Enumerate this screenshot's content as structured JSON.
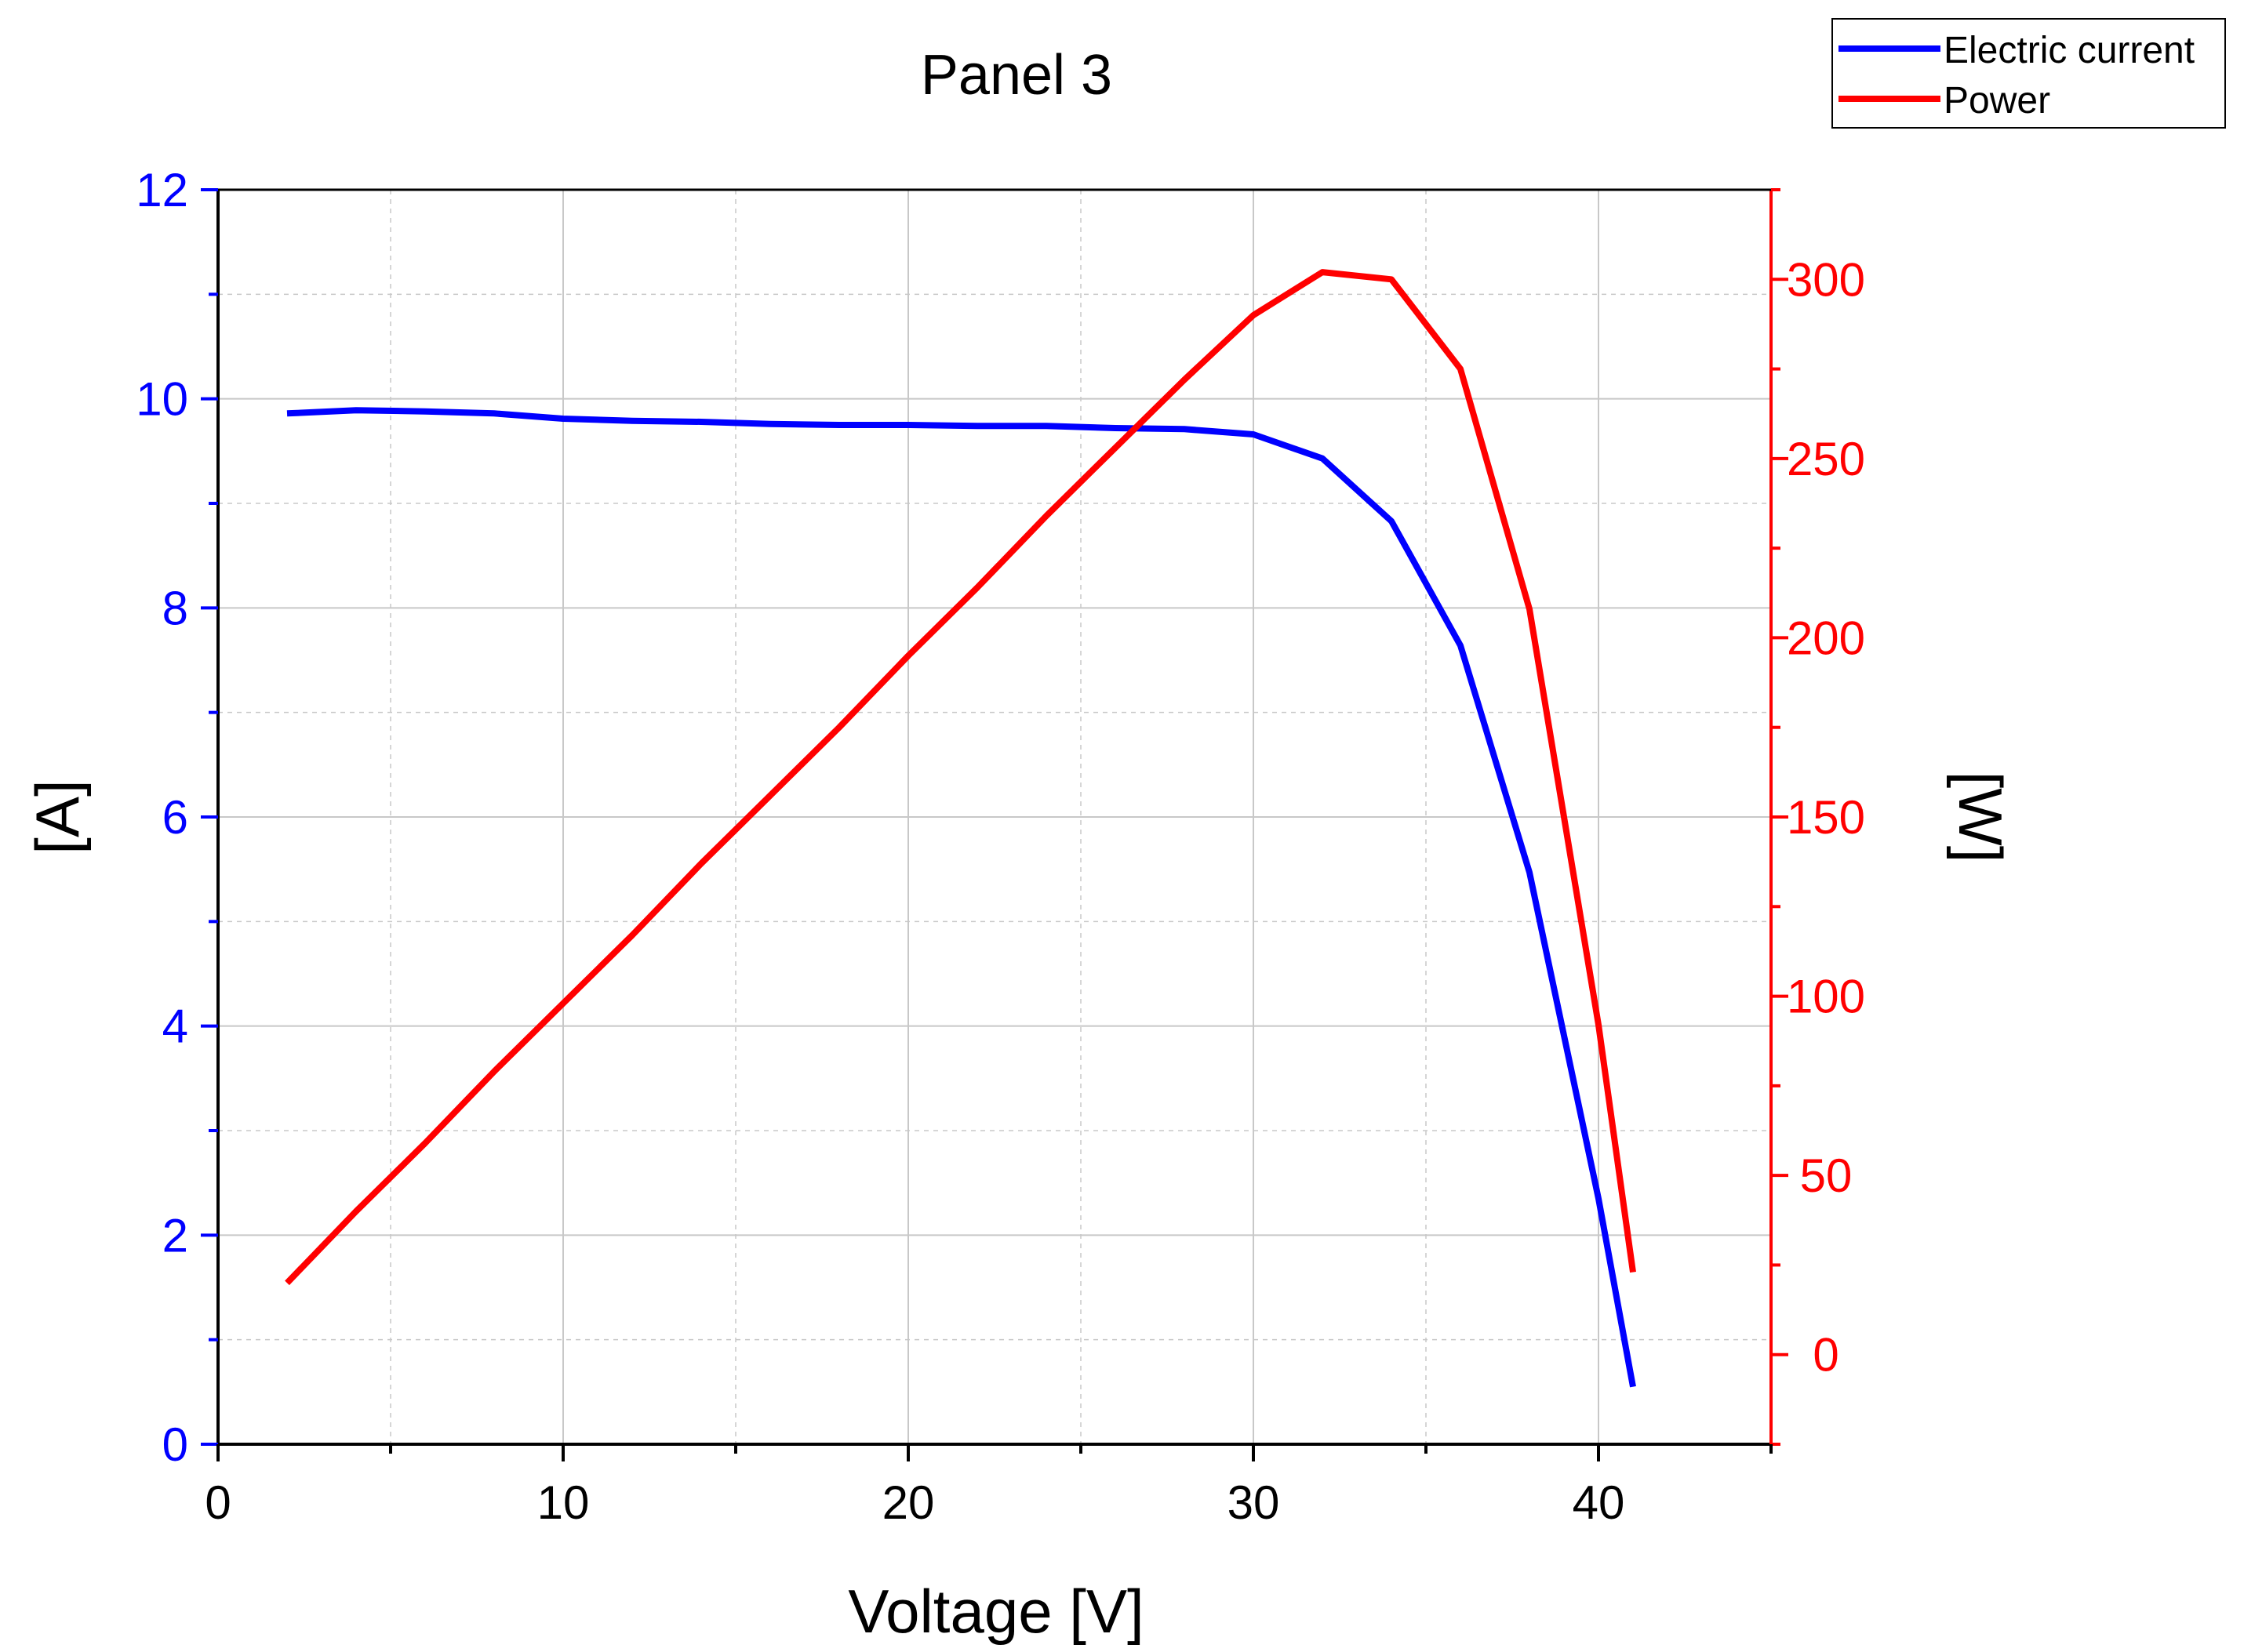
{
  "chart_data": {
    "type": "line",
    "title": "Panel 3",
    "xlabel": "Voltage [V]",
    "ylabel_left": "[A]",
    "ylabel_right": "[W]",
    "xlim": [
      0,
      45
    ],
    "ylim_left": [
      0,
      12
    ],
    "ylim_right": [
      -25,
      325
    ],
    "x_ticks": [
      0,
      10,
      20,
      30,
      40
    ],
    "y_left_ticks": [
      0,
      2,
      4,
      6,
      8,
      10,
      12
    ],
    "y_right_ticks": [
      0,
      50,
      100,
      150,
      200,
      250,
      300
    ],
    "grid": true,
    "legend_position": "top-right",
    "colors": {
      "left_axis": "#0000ff",
      "right_axis": "#ff0000",
      "axes": "#000000",
      "grid": "#c8c8c8"
    },
    "series": [
      {
        "name": "Electric current",
        "axis": "left",
        "color": "#0000ff",
        "x": [
          2,
          4,
          6,
          8,
          10,
          12,
          14,
          16,
          18,
          20,
          22,
          24,
          26,
          28,
          30,
          32,
          34,
          36,
          38,
          40,
          41
        ],
        "y": [
          9.86,
          9.89,
          9.88,
          9.86,
          9.81,
          9.79,
          9.78,
          9.76,
          9.75,
          9.75,
          9.74,
          9.74,
          9.72,
          9.71,
          9.66,
          9.43,
          8.83,
          7.64,
          5.47,
          2.35,
          0.55
        ]
      },
      {
        "name": "Power",
        "axis": "right",
        "color": "#ff0000",
        "x": [
          2,
          4,
          6,
          8,
          10,
          12,
          14,
          16,
          18,
          20,
          22,
          24,
          26,
          28,
          30,
          32,
          34,
          36,
          38,
          40,
          41
        ],
        "y": [
          20,
          40,
          59,
          79,
          98,
          117,
          137,
          156,
          175,
          195,
          214,
          234,
          253,
          272,
          290,
          302,
          300,
          275,
          208,
          92,
          23
        ]
      }
    ]
  }
}
